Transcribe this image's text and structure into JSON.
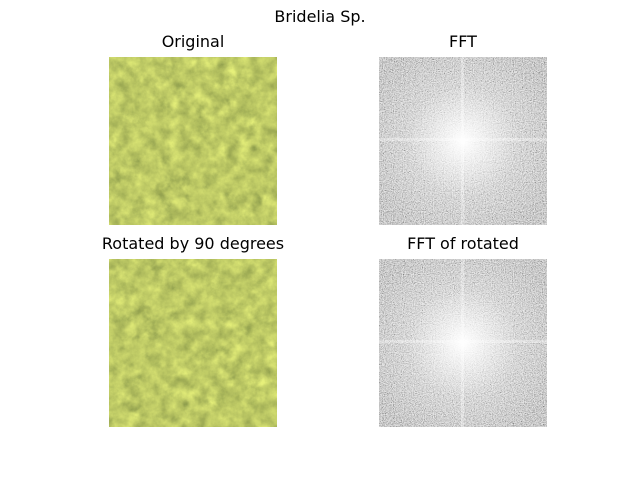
{
  "figure": {
    "suptitle": "Bridelia Sp.",
    "panels": [
      {
        "title": "Original",
        "kind": "image"
      },
      {
        "title": "FFT",
        "kind": "fft"
      },
      {
        "title": "Rotated by 90 degrees",
        "kind": "image"
      },
      {
        "title": "FFT of rotated",
        "kind": "fft"
      }
    ]
  },
  "colors": {
    "foliage_base": "#9fac55",
    "foliage_highlight": "#e6f07a",
    "foliage_shadow": "#5f7236",
    "spectrum_low": "#4a4a4a",
    "spectrum_high": "#ffffff"
  }
}
